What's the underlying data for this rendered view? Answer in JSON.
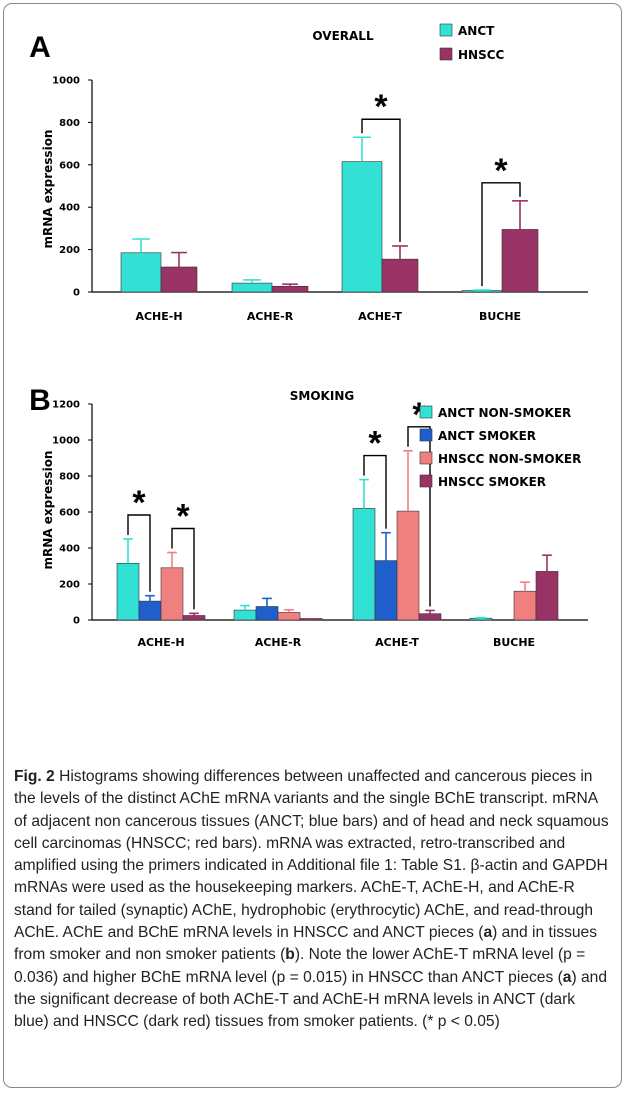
{
  "chart_data": [
    {
      "panel_label": "A",
      "type": "bar",
      "title": "OVERALL",
      "ylabel": "mRNA expression",
      "xlabel": "",
      "ylim": [
        0,
        1000
      ],
      "yticks": [
        0,
        200,
        400,
        600,
        800,
        1000
      ],
      "categories": [
        "ACHE-H",
        "ACHE-R",
        "ACHE-T",
        "BUCHE"
      ],
      "series": [
        {
          "name": "ANCT",
          "color": "#33e0d4",
          "values": [
            185,
            42,
            615,
            5
          ],
          "errors": [
            65,
            15,
            115,
            4
          ]
        },
        {
          "name": "HNSCC",
          "color": "#993366",
          "values": [
            118,
            27,
            155,
            295
          ],
          "errors": [
            68,
            10,
            62,
            135
          ]
        }
      ],
      "legend_position": "top-right",
      "grid": false,
      "annotations": [
        {
          "text": "*",
          "category": 2,
          "from_series": 0,
          "to_series": 1
        },
        {
          "text": "*",
          "category": 3,
          "from_series": 0,
          "to_series": 1
        }
      ]
    },
    {
      "panel_label": "B",
      "type": "bar",
      "title": "SMOKING",
      "ylabel": "mRNA expression",
      "xlabel": "",
      "ylim": [
        0,
        1200
      ],
      "yticks": [
        0,
        200,
        400,
        600,
        800,
        1000,
        1200
      ],
      "categories": [
        "ACHE-H",
        "ACHE-R",
        "ACHE-T",
        "BUCHE"
      ],
      "series": [
        {
          "name": "ANCT NON-SMOKER",
          "color": "#33e0d4",
          "values": [
            315,
            55,
            620,
            10
          ],
          "errors": [
            135,
            25,
            160,
            3
          ]
        },
        {
          "name": "ANCT SMOKER",
          "color": "#1f5fcc",
          "values": [
            105,
            75,
            330,
            0
          ],
          "errors": [
            30,
            45,
            155,
            0
          ]
        },
        {
          "name": "HNSCC NON-SMOKER",
          "color": "#f08080",
          "values": [
            290,
            42,
            605,
            160
          ],
          "errors": [
            85,
            15,
            335,
            50
          ]
        },
        {
          "name": "HNSCC SMOKER",
          "color": "#993366",
          "values": [
            25,
            3,
            35,
            270
          ],
          "errors": [
            12,
            2,
            18,
            90
          ]
        }
      ],
      "legend_position": "top-right",
      "grid": false,
      "annotations": [
        {
          "text": "*",
          "category": 0,
          "from_series": 0,
          "to_series": 1
        },
        {
          "text": "*",
          "category": 0,
          "from_series": 2,
          "to_series": 3
        },
        {
          "text": "*",
          "category": 2,
          "from_series": 0,
          "to_series": 1
        },
        {
          "text": "*",
          "category": 2,
          "from_series": 2,
          "to_series": 3
        }
      ]
    }
  ],
  "caption": {
    "label": "Fig. 2",
    "parts": [
      {
        "t": " Histograms showing differences between unaffected and cancerous pieces in the levels of the distinct AChE mRNA variants and the single BChE transcript. mRNA of adjacent non cancerous tissues (ANCT; blue bars) and of head and neck squamous cell carcinomas (HNSCC; red bars). mRNA was extracted, retro-transcribed and amplified using the primers indicated in Additional file 1: Table S1. β-actin and GAPDH mRNAs were used as the housekeeping markers. AChE-T, AChE-H, and AChE-R stand for tailed (synaptic) AChE, hydrophobic (erythrocytic) AChE, and read-through AChE. AChE and BChE mRNA levels in HNSCC and ANCT pieces (",
        "b": false
      },
      {
        "t": "a",
        "b": true
      },
      {
        "t": ") and in tissues from smoker and non smoker patients (",
        "b": false
      },
      {
        "t": "b",
        "b": true
      },
      {
        "t": "). Note the lower AChE-T mRNA level (p = 0.036) and higher BChE mRNA level (p = 0.015) in HNSCC than ANCT pieces (",
        "b": false
      },
      {
        "t": "a",
        "b": true
      },
      {
        "t": ") and the significant decrease of both AChE-T and AChE-H mRNA levels in ANCT (dark blue) and HNSCC (dark red) tissues from smoker patients. (* p < 0.05)",
        "b": false
      }
    ]
  }
}
